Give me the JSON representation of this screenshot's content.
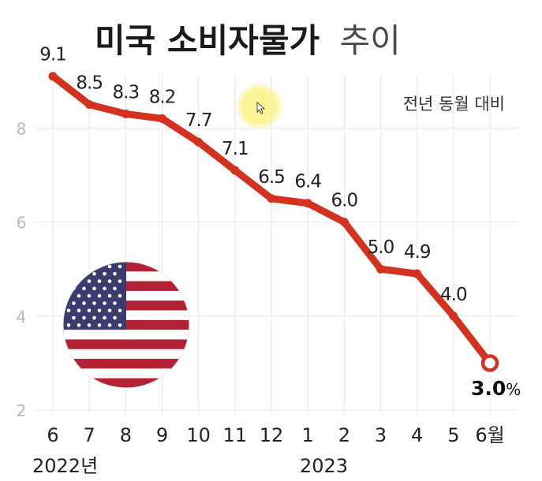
{
  "title": {
    "bold": "미국 소비자물가",
    "light": "추이"
  },
  "subtitle": "전년 동월 대비",
  "final_value_label": {
    "value": "3.0",
    "unit": "%"
  },
  "year_labels": [
    "2022년",
    "2023"
  ],
  "colors": {
    "line": "#d2321e",
    "grid": "#e6e6e6",
    "highlight": "#fbf38a"
  },
  "icons": [
    "us-flag-icon",
    "cursor-icon"
  ],
  "chart_data": {
    "type": "line",
    "categories": [
      "6",
      "7",
      "8",
      "9",
      "10",
      "11",
      "12",
      "1",
      "2",
      "3",
      "4",
      "5",
      "6월"
    ],
    "values": [
      9.1,
      8.5,
      8.3,
      8.2,
      7.7,
      7.1,
      6.5,
      6.4,
      6.0,
      5.0,
      4.9,
      4.0,
      3.0
    ],
    "data_labels": [
      "9.1",
      "8.5",
      "8.3",
      "8.2",
      "7.7",
      "7.1",
      "6.5",
      "6.4",
      "6.0",
      "5.0",
      "4.9",
      "4.0",
      "3.0%"
    ],
    "yticks": [
      2,
      4,
      6,
      8
    ],
    "ylim": [
      1.7,
      9.8
    ],
    "title": "미국 소비자물가 추이",
    "subtitle": "전년 동월 대비",
    "xlabel": "",
    "ylabel": "",
    "grid": true,
    "legend": "none"
  }
}
